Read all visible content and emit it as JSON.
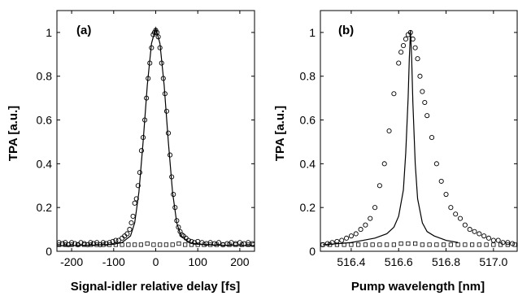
{
  "chart_data": [
    {
      "type": "scatter",
      "panel_label": "(a)",
      "xlabel": "Signal-idler relative delay [fs]",
      "ylabel": "TPA  [a.u.]",
      "xlim": [
        -235,
        235
      ],
      "ylim": [
        0,
        1.1
      ],
      "xticks": [
        -200,
        -100,
        0,
        100,
        200
      ],
      "yticks": [
        0,
        0.2,
        0.4,
        0.6,
        0.8,
        1
      ],
      "ytick_labels": [
        "0",
        "0.2",
        "0.4",
        "0.6",
        "0.8",
        "1"
      ],
      "grid": false,
      "series": [
        {
          "marker": "circle",
          "x": [
            -230,
            -222,
            -215,
            -208,
            -200,
            -192,
            -185,
            -178,
            -170,
            -162,
            -155,
            -148,
            -140,
            -132,
            -125,
            -118,
            -110,
            -102,
            -95,
            -88,
            -80,
            -74,
            -68,
            -62,
            -58,
            -54,
            -50,
            -46,
            -42,
            -38,
            -34,
            -30,
            -26,
            -22,
            -18,
            -14,
            -10,
            -6,
            -3,
            0,
            3,
            6,
            10,
            14,
            18,
            22,
            26,
            30,
            34,
            38,
            42,
            46,
            50,
            54,
            58,
            62,
            66,
            72,
            78,
            85,
            92,
            100,
            110,
            120,
            130,
            140,
            150,
            160,
            170,
            180,
            190,
            200,
            210,
            220,
            230
          ],
          "y": [
            0.04,
            0.035,
            0.04,
            0.03,
            0.04,
            0.035,
            0.03,
            0.04,
            0.035,
            0.03,
            0.04,
            0.035,
            0.04,
            0.03,
            0.04,
            0.035,
            0.04,
            0.045,
            0.05,
            0.05,
            0.06,
            0.07,
            0.08,
            0.1,
            0.13,
            0.16,
            0.22,
            0.24,
            0.3,
            0.36,
            0.46,
            0.52,
            0.6,
            0.7,
            0.79,
            0.86,
            0.93,
            0.99,
            1.0,
            1.01,
            1.0,
            0.98,
            0.93,
            0.86,
            0.79,
            0.72,
            0.64,
            0.54,
            0.44,
            0.34,
            0.26,
            0.2,
            0.14,
            0.11,
            0.09,
            0.075,
            0.07,
            0.06,
            0.05,
            0.045,
            0.04,
            0.045,
            0.04,
            0.035,
            0.04,
            0.035,
            0.04,
            0.03,
            0.035,
            0.04,
            0.035,
            0.04,
            0.035,
            0.04,
            0.035
          ]
        },
        {
          "marker": "square",
          "x": [
            -230,
            -215,
            -200,
            -185,
            -170,
            -155,
            -140,
            -125,
            -110,
            -95,
            -80,
            -65,
            -50,
            -35,
            -20,
            -5,
            10,
            25,
            40,
            55,
            70,
            85,
            100,
            115,
            130,
            145,
            160,
            175,
            190,
            205,
            220,
            232
          ],
          "y": [
            0.03,
            0.03,
            0.03,
            0.03,
            0.03,
            0.03,
            0.03,
            0.03,
            0.03,
            0.03,
            0.03,
            0.03,
            0.03,
            0.03,
            0.035,
            0.03,
            0.03,
            0.03,
            0.03,
            0.035,
            0.03,
            0.03,
            0.03,
            0.03,
            0.03,
            0.03,
            0.03,
            0.03,
            0.03,
            0.03,
            0.03,
            0.03
          ]
        },
        {
          "marker": "line",
          "x": [
            -235,
            -200,
            -150,
            -100,
            -80,
            -60,
            -50,
            -40,
            -30,
            -20,
            -10,
            0,
            10,
            20,
            30,
            40,
            50,
            60,
            80,
            100,
            150,
            200,
            235
          ],
          "y": [
            0.025,
            0.026,
            0.028,
            0.032,
            0.04,
            0.07,
            0.13,
            0.27,
            0.5,
            0.76,
            0.95,
            1.02,
            0.95,
            0.76,
            0.5,
            0.27,
            0.13,
            0.07,
            0.04,
            0.032,
            0.028,
            0.026,
            0.025
          ]
        }
      ]
    },
    {
      "type": "scatter",
      "panel_label": "(b)",
      "xlabel": "Pump wavelength [nm]",
      "ylabel": "TPA  [a.u.]",
      "xlim": [
        516.27,
        517.1
      ],
      "ylim": [
        0,
        1.1
      ],
      "xticks": [
        516.4,
        516.6,
        516.8,
        517.0
      ],
      "xtick_labels": [
        "516.4",
        "516.6",
        "516.8",
        "517.0"
      ],
      "yticks": [
        0,
        0.2,
        0.4,
        0.6,
        0.8,
        1
      ],
      "ytick_labels": [
        "0",
        "0.2",
        "0.4",
        "0.6",
        "0.8",
        "1"
      ],
      "grid": false,
      "series": [
        {
          "marker": "circle",
          "x": [
            516.28,
            516.3,
            516.32,
            516.34,
            516.36,
            516.38,
            516.4,
            516.42,
            516.44,
            516.46,
            516.48,
            516.5,
            516.52,
            516.54,
            516.56,
            516.58,
            516.6,
            516.61,
            516.62,
            516.63,
            516.64,
            516.65,
            516.66,
            516.67,
            516.68,
            516.69,
            516.7,
            516.71,
            516.72,
            516.74,
            516.76,
            516.78,
            516.8,
            516.82,
            516.84,
            516.86,
            516.88,
            516.9,
            516.92,
            516.94,
            516.96,
            516.98,
            517.0,
            517.02,
            517.04,
            517.06,
            517.08
          ],
          "y": [
            0.03,
            0.035,
            0.04,
            0.045,
            0.05,
            0.06,
            0.07,
            0.08,
            0.1,
            0.12,
            0.15,
            0.2,
            0.3,
            0.4,
            0.55,
            0.72,
            0.86,
            0.91,
            0.94,
            0.97,
            0.99,
            1.0,
            0.97,
            0.93,
            0.88,
            0.8,
            0.73,
            0.68,
            0.62,
            0.52,
            0.4,
            0.32,
            0.26,
            0.2,
            0.17,
            0.15,
            0.12,
            0.1,
            0.09,
            0.08,
            0.07,
            0.06,
            0.05,
            0.05,
            0.04,
            0.04,
            0.035
          ]
        },
        {
          "marker": "square",
          "x": [
            516.28,
            516.31,
            516.34,
            516.37,
            516.4,
            516.43,
            516.46,
            516.49,
            516.52,
            516.55,
            516.58,
            516.61,
            516.64,
            516.67,
            516.7,
            516.73,
            516.76,
            516.79,
            516.82,
            516.85,
            516.88,
            516.91,
            516.94,
            516.97,
            517.0,
            517.03,
            517.06,
            517.09
          ],
          "y": [
            0.03,
            0.03,
            0.03,
            0.03,
            0.03,
            0.03,
            0.03,
            0.03,
            0.03,
            0.03,
            0.03,
            0.035,
            0.035,
            0.035,
            0.03,
            0.03,
            0.03,
            0.03,
            0.03,
            0.03,
            0.03,
            0.03,
            0.03,
            0.03,
            0.03,
            0.03,
            0.03,
            0.03
          ]
        },
        {
          "marker": "line",
          "x": [
            516.28,
            516.35,
            516.4,
            516.45,
            516.5,
            516.55,
            516.58,
            516.6,
            516.62,
            516.63,
            516.64,
            516.645,
            516.65,
            516.655,
            516.66,
            516.67,
            516.68,
            516.7,
            516.72,
            516.75,
            516.8,
            516.85
          ],
          "y": [
            0.03,
            0.035,
            0.04,
            0.05,
            0.06,
            0.08,
            0.11,
            0.16,
            0.28,
            0.45,
            0.7,
            0.88,
            1.01,
            0.88,
            0.68,
            0.4,
            0.24,
            0.13,
            0.09,
            0.07,
            0.05,
            0.04
          ]
        }
      ]
    }
  ]
}
